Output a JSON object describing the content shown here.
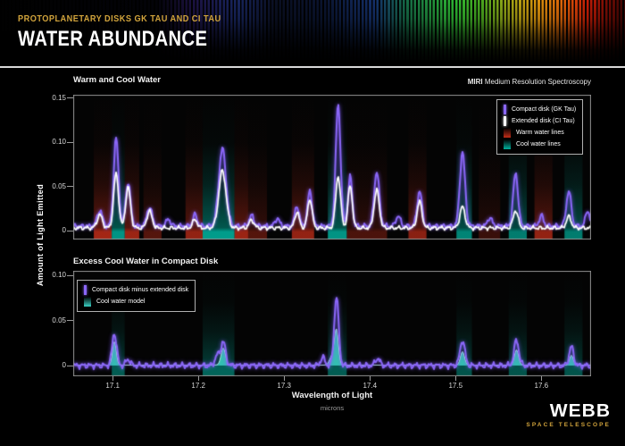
{
  "header": {
    "kicker": "PROTOPLANETARY DISKS GK TAU AND CI TAU",
    "title": "WATER ABUNDANCE"
  },
  "instrument": {
    "bold": "MIRI",
    "rest": "Medium Resolution Spectroscopy"
  },
  "axes": {
    "y_label": "Amount of Light Emitted",
    "x_label": "Wavelength of Light",
    "x_unit": "microns",
    "x_ticks": [
      {
        "v": 17.1,
        "label": "17.1"
      },
      {
        "v": 17.2,
        "label": "17.2"
      },
      {
        "v": 17.3,
        "label": "17.3"
      },
      {
        "v": 17.4,
        "label": "17.4"
      },
      {
        "v": 17.5,
        "label": "17.5"
      },
      {
        "v": 17.6,
        "label": "17.6"
      }
    ]
  },
  "logo": {
    "title": "WEBB",
    "subtitle": "SPACE TELESCOPE"
  },
  "colors": {
    "accent_gold": "#d2a43c",
    "purple_line": "#8a66f7",
    "white_line": "#ffffff",
    "warm_band": "#c52d18",
    "cool_band": "#00b29e",
    "teal_fill": "#3ad2c4",
    "frame": "#8e8e8e",
    "tick_text": "#d8d8d8"
  },
  "chart_data": [
    {
      "type": "line",
      "title": "Warm and Cool Water",
      "xlim": [
        17.054,
        17.658
      ],
      "ylim": [
        0,
        0.15
      ],
      "grid": false,
      "legend_position": "top-right",
      "y_ticks": [
        {
          "v": 0,
          "label": "0"
        },
        {
          "v": 0.05,
          "label": "0.05"
        },
        {
          "v": 0.1,
          "label": "0.10"
        },
        {
          "v": 0.15,
          "label": "0.15"
        }
      ],
      "legend": [
        {
          "label": "Compact disk (GK Tau)",
          "swatch": "line",
          "color": "#8a66f7"
        },
        {
          "label": "Extended disk (CI Tau)",
          "swatch": "line",
          "color": "#ffffff"
        },
        {
          "label": "Warm water lines",
          "swatch": "gradient",
          "color": "#c52d18"
        },
        {
          "label": "Cool water lines",
          "swatch": "gradient",
          "color": "#00b29e"
        }
      ],
      "bands": {
        "warm": [
          [
            17.078,
            17.099,
            0.9
          ],
          [
            17.114,
            17.131,
            0.85
          ],
          [
            17.136,
            17.157,
            0.45
          ],
          [
            17.185,
            17.205,
            0.8
          ],
          [
            17.242,
            17.258,
            0.85
          ],
          [
            17.258,
            17.28,
            0.45
          ],
          [
            17.309,
            17.335,
            0.8
          ],
          [
            17.373,
            17.42,
            0.4
          ],
          [
            17.445,
            17.466,
            0.75
          ],
          [
            17.527,
            17.552,
            0.3
          ],
          [
            17.592,
            17.613,
            0.8
          ]
        ],
        "cool": [
          [
            17.099,
            17.114,
            0.9
          ],
          [
            17.205,
            17.242,
            0.95
          ],
          [
            17.351,
            17.373,
            0.9
          ],
          [
            17.501,
            17.519,
            0.8
          ],
          [
            17.562,
            17.583,
            0.75
          ],
          [
            17.627,
            17.648,
            0.75
          ]
        ]
      },
      "series": [
        {
          "name": "Compact disk (GK Tau)",
          "color": "#8a66f7",
          "baseline": 0.005,
          "noise": 0.0035,
          "peaks": [
            [
              17.085,
              0.018,
              0.003
            ],
            [
              17.104,
              0.1,
              0.0028
            ],
            [
              17.118,
              0.05,
              0.0028
            ],
            [
              17.143,
              0.022,
              0.003
            ],
            [
              17.165,
              0.008,
              0.0025
            ],
            [
              17.196,
              0.013,
              0.0025
            ],
            [
              17.228,
              0.088,
              0.0042
            ],
            [
              17.262,
              0.012,
              0.0028
            ],
            [
              17.292,
              0.009,
              0.0025
            ],
            [
              17.315,
              0.023,
              0.0026
            ],
            [
              17.33,
              0.04,
              0.0026
            ],
            [
              17.363,
              0.138,
              0.0028
            ],
            [
              17.377,
              0.056,
              0.0025
            ],
            [
              17.408,
              0.062,
              0.003
            ],
            [
              17.433,
              0.012,
              0.0025
            ],
            [
              17.458,
              0.04,
              0.0028
            ],
            [
              17.508,
              0.084,
              0.003
            ],
            [
              17.54,
              0.01,
              0.0025
            ],
            [
              17.57,
              0.06,
              0.0028
            ],
            [
              17.6,
              0.012,
              0.0025
            ],
            [
              17.632,
              0.04,
              0.0028
            ],
            [
              17.654,
              0.018,
              0.0024
            ]
          ]
        },
        {
          "name": "Extended disk (CI Tau)",
          "color": "#ffffff",
          "baseline": 0.003,
          "noise": 0.0028,
          "peaks": [
            [
              17.085,
              0.015,
              0.003
            ],
            [
              17.104,
              0.062,
              0.0028
            ],
            [
              17.118,
              0.046,
              0.0028
            ],
            [
              17.143,
              0.019,
              0.003
            ],
            [
              17.196,
              0.01,
              0.0025
            ],
            [
              17.228,
              0.065,
              0.0042
            ],
            [
              17.262,
              0.009,
              0.0028
            ],
            [
              17.315,
              0.018,
              0.0026
            ],
            [
              17.33,
              0.033,
              0.0026
            ],
            [
              17.363,
              0.059,
              0.0028
            ],
            [
              17.377,
              0.048,
              0.0025
            ],
            [
              17.408,
              0.043,
              0.003
            ],
            [
              17.458,
              0.03,
              0.0028
            ],
            [
              17.508,
              0.024,
              0.003
            ],
            [
              17.57,
              0.02,
              0.0028
            ],
            [
              17.632,
              0.013,
              0.0028
            ]
          ]
        }
      ]
    },
    {
      "type": "line",
      "title": "Excess Cool Water in Compact Disk",
      "xlim": [
        17.054,
        17.658
      ],
      "ylim": [
        0,
        0.1
      ],
      "grid": false,
      "legend_position": "top-left",
      "y_ticks": [
        {
          "v": 0,
          "label": "0"
        },
        {
          "v": 0.05,
          "label": "0.05"
        },
        {
          "v": 0.1,
          "label": "0.10"
        }
      ],
      "legend": [
        {
          "label": "Compact disk minus extended disk",
          "swatch": "line",
          "color": "#8a66f7"
        },
        {
          "label": "Cool water model",
          "swatch": "gradient",
          "color": "#3ad2c4"
        }
      ],
      "bands": {
        "cool": [
          [
            17.099,
            17.114,
            0.55
          ],
          [
            17.205,
            17.242,
            0.6
          ],
          [
            17.351,
            17.373,
            0.55
          ],
          [
            17.501,
            17.519,
            0.5
          ],
          [
            17.562,
            17.583,
            0.5
          ],
          [
            17.627,
            17.648,
            0.5
          ]
        ]
      },
      "series": [
        {
          "name": "Compact disk minus extended disk",
          "color": "#8a66f7",
          "baseline": 0.0,
          "noise": 0.004,
          "peaks": [
            [
              17.102,
              0.036,
              0.0026
            ],
            [
              17.118,
              0.007,
              0.0025
            ],
            [
              17.222,
              0.011,
              0.0028
            ],
            [
              17.229,
              0.026,
              0.0028
            ],
            [
              17.345,
              0.009,
              0.0025
            ],
            [
              17.361,
              0.076,
              0.0026
            ],
            [
              17.409,
              0.008,
              0.0026
            ],
            [
              17.508,
              0.028,
              0.0028
            ],
            [
              17.571,
              0.028,
              0.0028
            ],
            [
              17.635,
              0.021,
              0.0026
            ]
          ]
        },
        {
          "name": "Cool water model",
          "color": "#3ad2c4",
          "style": "area",
          "baseline": 0.0005,
          "noise": 0,
          "peaks": [
            [
              17.102,
              0.026,
              0.0022
            ],
            [
              17.229,
              0.019,
              0.0026
            ],
            [
              17.356,
              0.01,
              0.003
            ],
            [
              17.361,
              0.038,
              0.0023
            ],
            [
              17.508,
              0.015,
              0.0024
            ],
            [
              17.571,
              0.017,
              0.0024
            ],
            [
              17.635,
              0.011,
              0.0022
            ]
          ]
        }
      ]
    }
  ]
}
